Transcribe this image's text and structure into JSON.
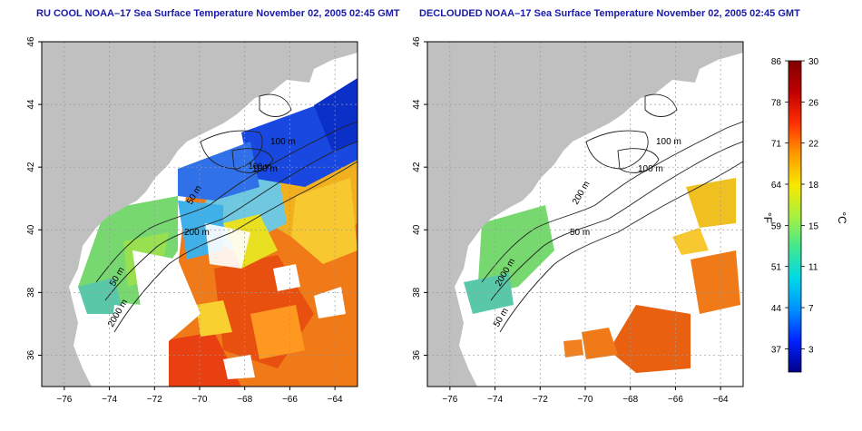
{
  "maps": [
    {
      "title": "RU COOL NOAA–17 Sea Surface Temperature November 02, 2005 02:45 GMT",
      "variant": "raw"
    },
    {
      "title": "DECLOUDED NOAA–17 Sea Surface Temperature November 02, 2005 02:45 GMT",
      "variant": "declouded"
    }
  ],
  "axes": {
    "x_ticks": [
      "−76",
      "−74",
      "−72",
      "−70",
      "−68",
      "−66",
      "−64"
    ],
    "y_ticks": [
      "46",
      "44",
      "42",
      "40",
      "38",
      "36"
    ],
    "lon_range": [
      -77,
      -63
    ],
    "lat_range": [
      35,
      46
    ],
    "grid": "dotted"
  },
  "contour_labels": {
    "raw": [
      "100 m",
      "100 m",
      "200 m",
      "50 m",
      "2000 m",
      "50 m"
    ],
    "declouded": [
      "100 m",
      "100 m",
      "50 m",
      "200 m",
      "50 m",
      "2000 m"
    ]
  },
  "colorbar": {
    "f_ticks": [
      "86",
      "78",
      "71",
      "64",
      "59",
      "51",
      "44",
      "37"
    ],
    "c_ticks": [
      "30",
      "26",
      "22",
      "18",
      "15",
      "11",
      "7",
      "3"
    ],
    "f_label": "°F",
    "c_label": "°C",
    "range_c": [
      0,
      30
    ],
    "colors": [
      "#00008a",
      "#0022ff",
      "#0090ff",
      "#00d8e8",
      "#40e890",
      "#a8f040",
      "#f8e800",
      "#ff9a00",
      "#ff3000",
      "#c00000",
      "#800000"
    ]
  },
  "colors": {
    "land": "#c0c0c0",
    "ocean_clear": "#ffffff",
    "title": "#1a1aa8",
    "contour": "#202020"
  }
}
